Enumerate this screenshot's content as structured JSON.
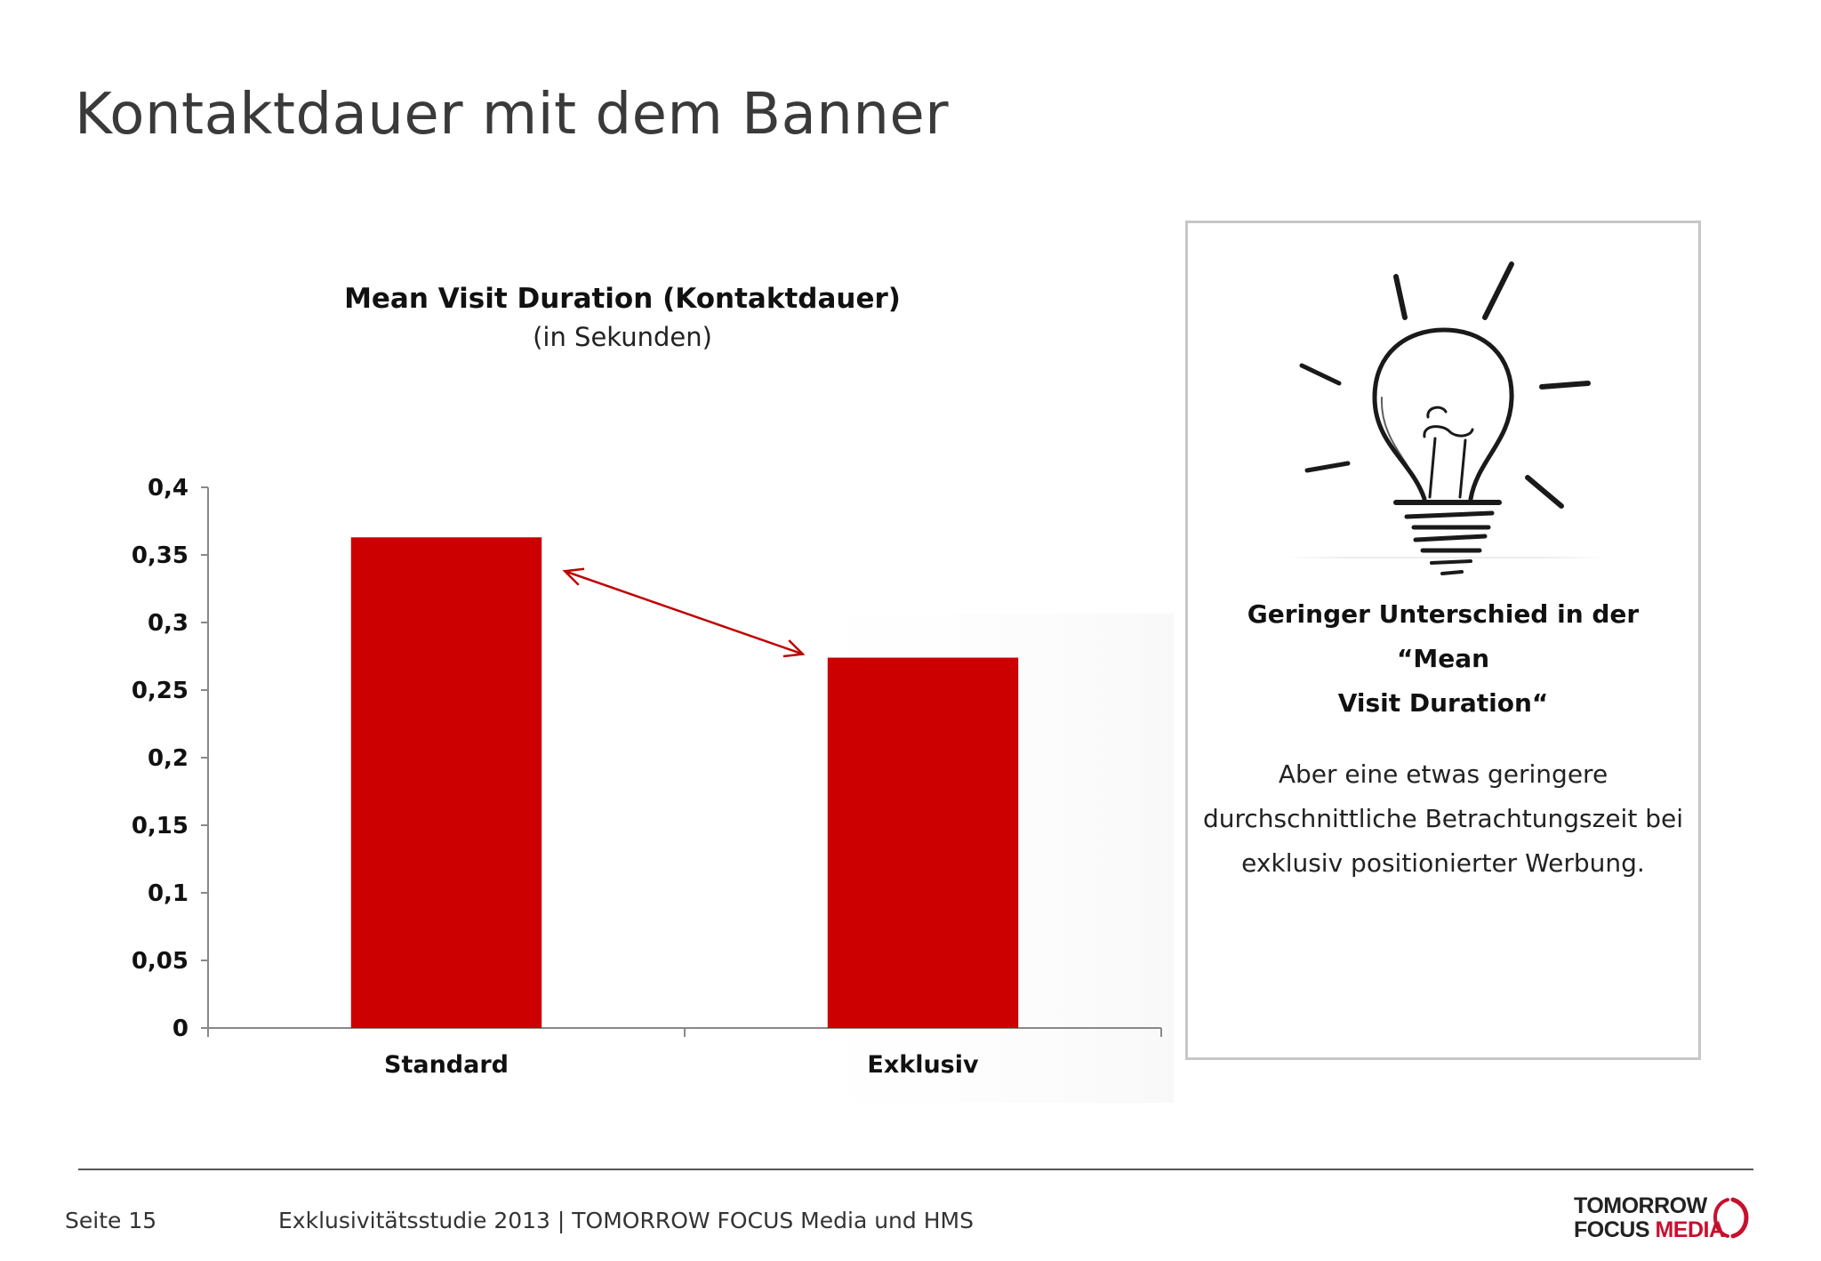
{
  "page": {
    "title": "Kontaktdauer mit dem Banner"
  },
  "chart_data": {
    "type": "bar",
    "title": "Mean Visit Duration (Kontaktdauer)",
    "subtitle": "(in Sekunden)",
    "categories": [
      "Standard",
      "Exklusiv"
    ],
    "values": [
      0.363,
      0.274
    ],
    "ylim": [
      0,
      0.4
    ],
    "yticks": [
      0,
      0.05,
      0.1,
      0.15,
      0.2,
      0.25,
      0.3,
      0.35,
      0.4
    ],
    "ytick_labels": [
      "0",
      "0,05",
      "0,1",
      "0,15",
      "0,2",
      "0,25",
      "0,3",
      "0,35",
      "0,4"
    ],
    "bar_color": "#cc0000",
    "arrow_color": "#c00000",
    "annotation": "double-headed arrow between bar tops",
    "grid": false,
    "legend": "none"
  },
  "info_box": {
    "icon": "light-bulb-icon",
    "headline_line1": "Geringer Unterschied in der “Mean",
    "headline_line2": "Visit Duration“",
    "body_line1": "Aber eine etwas geringere",
    "body_line2": "durchschnittliche Betrachtungszeit bei",
    "body_line3": "exklusiv positionierter Werbung."
  },
  "footer": {
    "page_number": "Seite 15",
    "text": "Exklusivitätsstudie 2013 | TOMORROW FOCUS Media und HMS",
    "logo_line1": "TOMORROW",
    "logo_line2a": "FOCUS",
    "logo_line2b": "MEDIA",
    "brand_color": "#c8102e"
  }
}
